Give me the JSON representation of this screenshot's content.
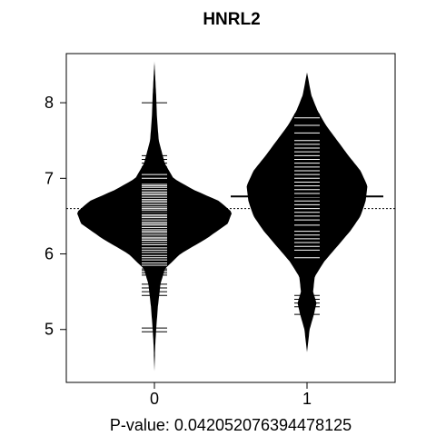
{
  "chart_data": {
    "type": "beanplot",
    "title": "HNRL2",
    "subtitle": "P-value: 0.042052076394478125",
    "xlabel": "",
    "ylabel": "",
    "categories": [
      "0",
      "1"
    ],
    "ylim": [
      4.3,
      8.65
    ],
    "y_ticks": [
      5,
      6,
      7,
      8
    ],
    "overall_mean": 6.6,
    "grid": false,
    "legend": "none",
    "colors": {
      "bean": "#000000",
      "background": "#ffffff",
      "strip": "#ffffff"
    },
    "groups": [
      {
        "category": "0",
        "mean": 6.54,
        "range": [
          4.45,
          8.55
        ],
        "density": [
          [
            4.45,
            0.0
          ],
          [
            4.8,
            0.01
          ],
          [
            5.0,
            0.02
          ],
          [
            5.3,
            0.04
          ],
          [
            5.6,
            0.07
          ],
          [
            5.8,
            0.12
          ],
          [
            6.0,
            0.3
          ],
          [
            6.2,
            0.6
          ],
          [
            6.4,
            0.85
          ],
          [
            6.55,
            0.9
          ],
          [
            6.7,
            0.75
          ],
          [
            6.85,
            0.45
          ],
          [
            7.0,
            0.22
          ],
          [
            7.2,
            0.12
          ],
          [
            7.5,
            0.05
          ],
          [
            7.8,
            0.03
          ],
          [
            8.1,
            0.02
          ],
          [
            8.55,
            0.0
          ]
        ],
        "values": [
          4.97,
          5.02,
          5.45,
          5.5,
          5.55,
          5.6,
          5.72,
          5.75,
          5.78,
          5.8,
          5.85,
          5.88,
          5.92,
          5.95,
          5.98,
          6.02,
          6.05,
          6.08,
          6.12,
          6.15,
          6.18,
          6.2,
          6.22,
          6.25,
          6.28,
          6.3,
          6.32,
          6.35,
          6.38,
          6.4,
          6.42,
          6.45,
          6.48,
          6.5,
          6.52,
          6.55,
          6.58,
          6.6,
          6.62,
          6.65,
          6.68,
          6.7,
          6.72,
          6.75,
          6.78,
          6.8,
          6.82,
          6.85,
          6.88,
          6.9,
          6.92,
          7.0,
          7.05,
          7.15,
          7.2,
          7.25,
          7.3,
          8.0
        ]
      },
      {
        "category": "1",
        "mean": 6.76,
        "range": [
          4.7,
          8.4
        ],
        "density": [
          [
            4.7,
            0.0
          ],
          [
            5.0,
            0.03
          ],
          [
            5.2,
            0.08
          ],
          [
            5.35,
            0.11
          ],
          [
            5.5,
            0.07
          ],
          [
            5.7,
            0.09
          ],
          [
            5.9,
            0.2
          ],
          [
            6.1,
            0.35
          ],
          [
            6.3,
            0.5
          ],
          [
            6.5,
            0.62
          ],
          [
            6.7,
            0.68
          ],
          [
            6.9,
            0.7
          ],
          [
            7.1,
            0.62
          ],
          [
            7.3,
            0.48
          ],
          [
            7.5,
            0.35
          ],
          [
            7.7,
            0.22
          ],
          [
            7.9,
            0.12
          ],
          [
            8.1,
            0.05
          ],
          [
            8.4,
            0.0
          ]
        ],
        "values": [
          5.2,
          5.3,
          5.35,
          5.4,
          5.45,
          5.95,
          6.05,
          6.1,
          6.15,
          6.2,
          6.25,
          6.3,
          6.38,
          6.45,
          6.5,
          6.55,
          6.6,
          6.65,
          6.7,
          6.75,
          6.8,
          6.85,
          6.9,
          6.95,
          7.0,
          7.05,
          7.1,
          7.15,
          7.2,
          7.25,
          7.3,
          7.35,
          7.4,
          7.45,
          7.5,
          7.6,
          7.7,
          7.8,
          7.85
        ]
      }
    ]
  }
}
